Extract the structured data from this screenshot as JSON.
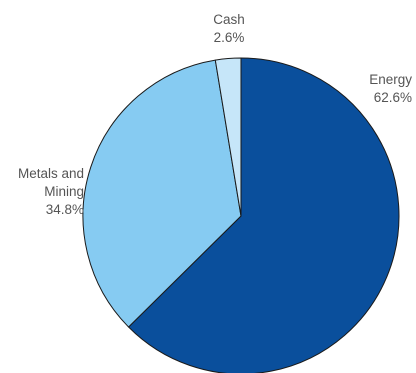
{
  "chart_data": {
    "type": "pie",
    "title": "",
    "series": [
      {
        "name": "",
        "slices": [
          {
            "label_lines": [
              "Energy"
            ],
            "value": 62.6,
            "value_label": "62.6%",
            "color": "#0a4f9c"
          },
          {
            "label_lines": [
              "Metals and",
              "Mining"
            ],
            "value": 34.8,
            "value_label": "34.8%",
            "color": "#86cbf2"
          },
          {
            "label_lines": [
              "Cash"
            ],
            "value": 2.6,
            "value_label": "2.6%",
            "color": "#c6e6f9"
          }
        ]
      }
    ],
    "start_angle_deg": 0,
    "direction": "clockwise",
    "legend": "none",
    "labels": "outside"
  }
}
